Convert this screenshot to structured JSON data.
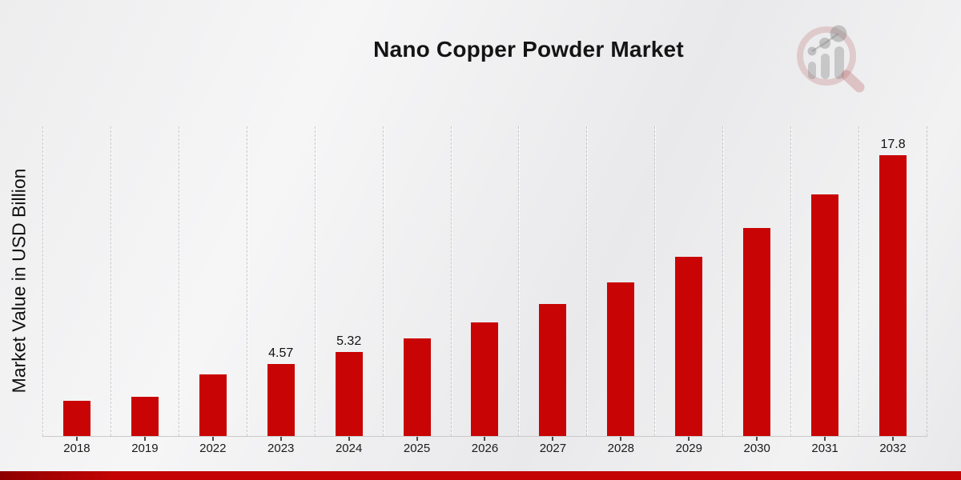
{
  "page": {
    "title": "Nano Copper Powder Market",
    "ylabel": "Market Value in USD Billion",
    "brand_logo": "market-research-future-magnifier-logo"
  },
  "colors": {
    "bar": "#c90404",
    "bottom_band": "#c40404",
    "bottom_band_left": "#8d0000",
    "background": "#efeff0",
    "gridline": "#c6c6c8",
    "text": "#141414"
  },
  "chart_data": {
    "type": "bar",
    "title": "Nano Copper Powder Market",
    "xlabel": "",
    "ylabel": "Market Value in USD Billion",
    "unit": "USD Billion",
    "ylim": [
      0,
      19.6
    ],
    "grid": "vertical-dashed",
    "legend": "none",
    "categories": [
      "2018",
      "2019",
      "2022",
      "2023",
      "2024",
      "2025",
      "2026",
      "2027",
      "2028",
      "2029",
      "2030",
      "2031",
      "2032"
    ],
    "values": [
      2.24,
      2.5,
      3.9,
      4.57,
      5.32,
      6.19,
      7.2,
      8.37,
      9.73,
      11.32,
      13.16,
      15.31,
      17.8
    ],
    "bar_labels": [
      "",
      "",
      "",
      "4.57",
      "5.32",
      "",
      "",
      "",
      "",
      "",
      "",
      "",
      "17.8"
    ]
  }
}
